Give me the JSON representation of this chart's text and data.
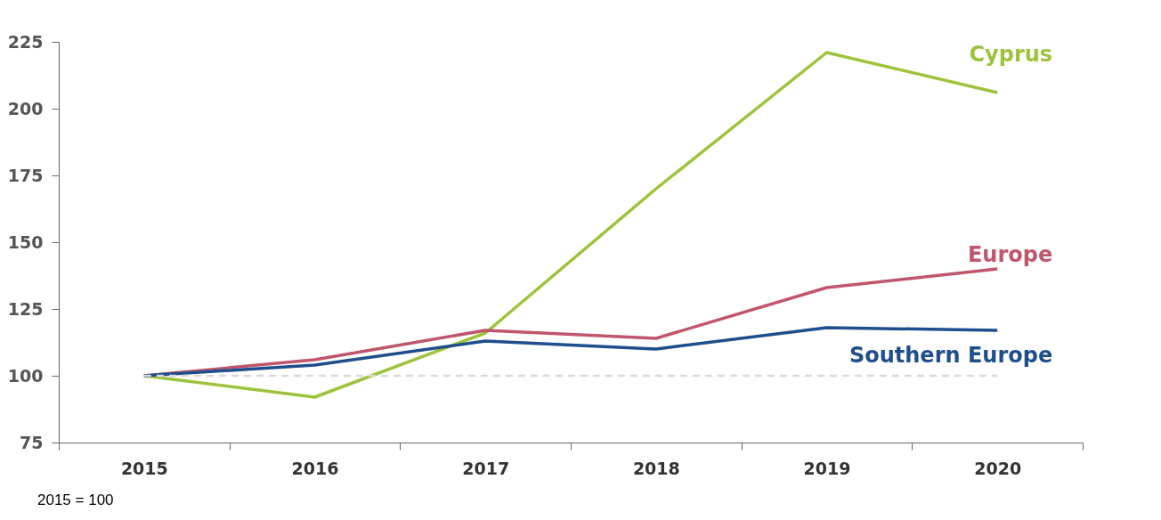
{
  "chart_data": {
    "type": "line",
    "categories": [
      "2015",
      "2016",
      "2017",
      "2018",
      "2019",
      "2020"
    ],
    "series": [
      {
        "name": "Cyprus",
        "color": "#9dc33b",
        "values": [
          100,
          92,
          116,
          170,
          221,
          206
        ]
      },
      {
        "name": "Europe",
        "color": "#c0566b",
        "values": [
          100,
          106,
          117,
          114,
          133,
          140
        ]
      },
      {
        "name": "Southern Europe",
        "color": "#1f4e8c",
        "values": [
          100,
          104,
          113,
          110,
          118,
          117
        ]
      }
    ],
    "ylim": [
      75,
      225
    ],
    "yticks": [
      75,
      100,
      125,
      150,
      175,
      200,
      225
    ],
    "grid": false,
    "legend": false,
    "ref_lines": [
      {
        "axis": "y",
        "value": 100,
        "color": "#d9d9d9",
        "line_style": "dashed"
      }
    ],
    "annotations": [
      "2015 = 100"
    ]
  }
}
